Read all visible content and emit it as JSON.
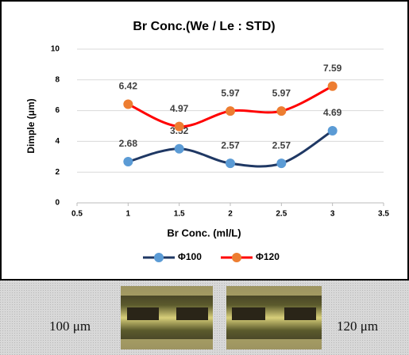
{
  "chart_data": {
    "type": "line",
    "title": "Br Conc.(We / Le : STD)",
    "x_label": "Br Conc. (ml/L)",
    "y_label": "Dimple (μm)",
    "x": [
      1,
      1.5,
      2,
      2.5,
      3
    ],
    "series": [
      {
        "name": "Φ100",
        "color": "#1f3864",
        "marker_color": "#5b9bd5",
        "values": [
          2.68,
          3.52,
          2.57,
          2.57,
          4.69
        ]
      },
      {
        "name": "Φ120",
        "color": "#ff0000",
        "marker_color": "#ed7d31",
        "values": [
          6.42,
          4.97,
          5.97,
          5.97,
          7.59
        ]
      }
    ],
    "xlim": [
      0.5,
      3.5
    ],
    "xticks": [
      0.5,
      1,
      1.5,
      2,
      2.5,
      3,
      3.5
    ],
    "ylim": [
      0,
      10
    ],
    "yticks": [
      0,
      2,
      4,
      6,
      8,
      10
    ],
    "grid": true,
    "legend": "bottom"
  },
  "photo_captions": [
    "100 μm",
    "120 μm"
  ]
}
